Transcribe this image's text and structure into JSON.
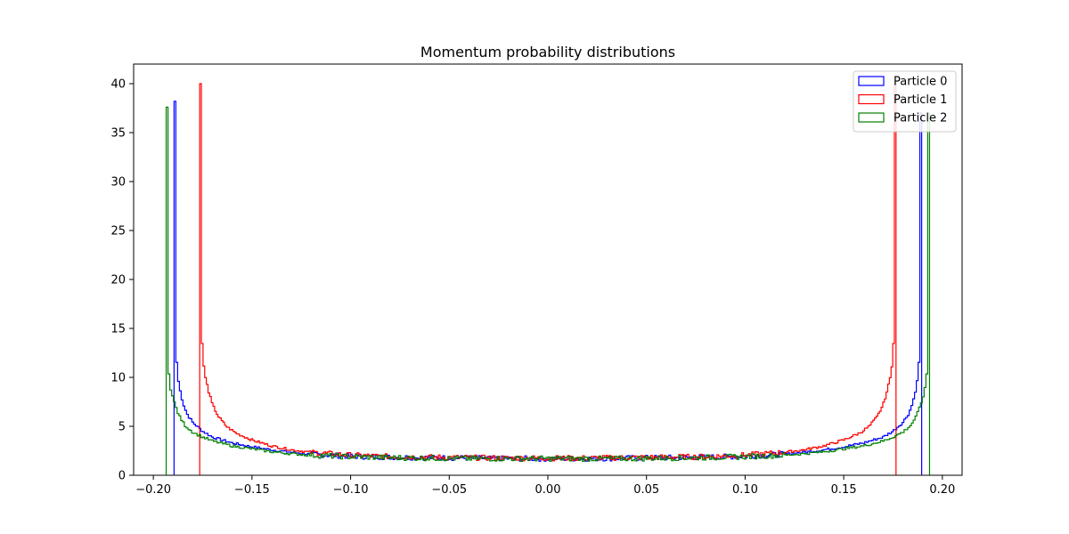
{
  "chart_data": {
    "type": "histogram-step",
    "title": "Momentum probability distributions",
    "xlabel": "",
    "ylabel": "",
    "xlim": [
      -0.21,
      0.21
    ],
    "ylim": [
      0,
      42
    ],
    "x_ticks": [
      -0.2,
      -0.15,
      -0.1,
      -0.05,
      0.0,
      0.05,
      0.1,
      0.15,
      0.2
    ],
    "x_tick_labels": [
      "−0.20",
      "−0.15",
      "−0.10",
      "−0.05",
      "0.00",
      "0.05",
      "0.10",
      "0.15",
      "0.20"
    ],
    "y_ticks": [
      0,
      5,
      10,
      15,
      20,
      25,
      30,
      35,
      40
    ],
    "y_tick_labels": [
      "0",
      "5",
      "10",
      "15",
      "20",
      "25",
      "30",
      "35",
      "40"
    ],
    "grid": false,
    "legend_position": "top-right",
    "series": [
      {
        "name": "Particle 0",
        "color": "#0000ff",
        "edge": 0.1895,
        "x": [
          -0.1895,
          -0.189,
          -0.188,
          -0.187,
          -0.185,
          -0.183,
          -0.18,
          -0.175,
          -0.17,
          -0.16,
          -0.15,
          -0.14,
          -0.13,
          -0.12,
          -0.1,
          -0.08,
          -0.06,
          -0.04,
          -0.02,
          0.0,
          0.02,
          0.04,
          0.06,
          0.08,
          0.1,
          0.12,
          0.13,
          0.14,
          0.15,
          0.16,
          0.17,
          0.175,
          0.18,
          0.183,
          0.185,
          0.187,
          0.188,
          0.189,
          0.1895
        ],
        "y": [
          38.2,
          15.8,
          10.8,
          9.2,
          7.4,
          6.3,
          5.4,
          4.5,
          3.9,
          3.3,
          2.9,
          2.6,
          2.35,
          2.15,
          1.95,
          1.85,
          1.8,
          1.75,
          1.7,
          1.7,
          1.7,
          1.75,
          1.8,
          1.85,
          1.95,
          2.15,
          2.35,
          2.6,
          2.9,
          3.3,
          3.9,
          4.5,
          5.4,
          6.3,
          7.4,
          9.2,
          10.8,
          15.8,
          37.0
        ]
      },
      {
        "name": "Particle 1",
        "color": "#ff0000",
        "edge": 0.1765,
        "x": [
          -0.1765,
          -0.176,
          -0.175,
          -0.174,
          -0.172,
          -0.17,
          -0.167,
          -0.163,
          -0.158,
          -0.15,
          -0.14,
          -0.13,
          -0.12,
          -0.1,
          -0.08,
          -0.06,
          -0.04,
          -0.02,
          0.0,
          0.02,
          0.04,
          0.06,
          0.08,
          0.1,
          0.12,
          0.13,
          0.14,
          0.15,
          0.158,
          0.163,
          0.167,
          0.17,
          0.172,
          0.174,
          0.175,
          0.176,
          0.1765
        ],
        "y": [
          40.0,
          16.5,
          12.5,
          10.3,
          8.6,
          7.2,
          6.0,
          5.0,
          4.3,
          3.6,
          3.0,
          2.6,
          2.35,
          2.05,
          1.9,
          1.85,
          1.8,
          1.75,
          1.75,
          1.75,
          1.8,
          1.85,
          1.9,
          2.05,
          2.35,
          2.6,
          3.0,
          3.6,
          4.3,
          5.0,
          6.0,
          7.2,
          8.6,
          10.3,
          12.5,
          16.5,
          40.0
        ]
      },
      {
        "name": "Particle 2",
        "color": "#008000",
        "edge": 0.1935,
        "x": [
          -0.1935,
          -0.193,
          -0.192,
          -0.191,
          -0.189,
          -0.187,
          -0.184,
          -0.18,
          -0.175,
          -0.17,
          -0.16,
          -0.15,
          -0.14,
          -0.13,
          -0.12,
          -0.1,
          -0.08,
          -0.06,
          -0.04,
          -0.02,
          0.0,
          0.02,
          0.04,
          0.06,
          0.08,
          0.1,
          0.12,
          0.13,
          0.14,
          0.15,
          0.16,
          0.17,
          0.175,
          0.18,
          0.184,
          0.187,
          0.189,
          0.191,
          0.192,
          0.193,
          0.1935
        ],
        "y": [
          37.6,
          14.5,
          9.8,
          8.6,
          7.2,
          6.1,
          5.1,
          4.4,
          3.9,
          3.5,
          3.0,
          2.7,
          2.4,
          2.2,
          2.05,
          1.9,
          1.8,
          1.75,
          1.7,
          1.7,
          1.7,
          1.7,
          1.7,
          1.75,
          1.8,
          1.9,
          2.05,
          2.2,
          2.4,
          2.7,
          3.0,
          3.5,
          3.9,
          4.4,
          5.1,
          6.1,
          7.2,
          8.6,
          9.8,
          14.5,
          37.0
        ]
      }
    ]
  }
}
